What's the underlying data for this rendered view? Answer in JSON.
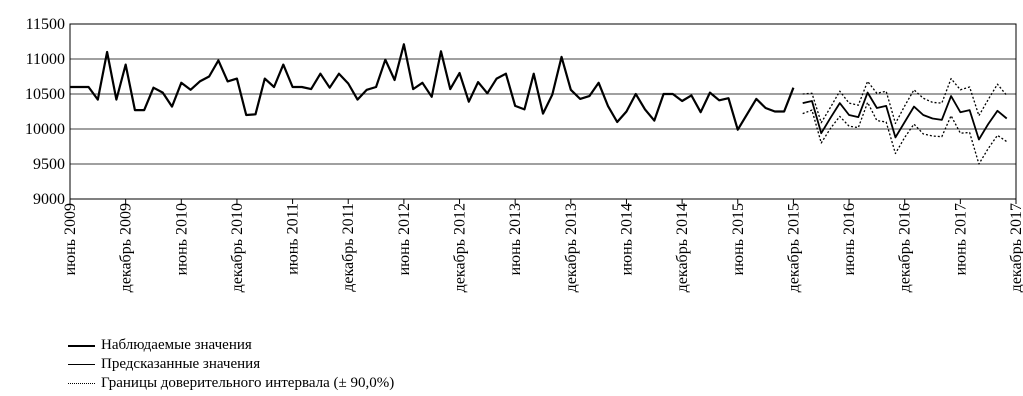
{
  "chart_data": {
    "type": "line",
    "title": "",
    "xlabel": "",
    "ylabel": "",
    "ylim": [
      9000,
      11500
    ],
    "yticks": [
      9000,
      9500,
      10000,
      10500,
      11000,
      11500
    ],
    "grid": "horizontal",
    "legend_position": "bottom-left",
    "x_start": "2009-06",
    "x_end": "2017-12",
    "xtick_labels": [
      "июнь 2009",
      "декабрь 2009",
      "июнь 2010",
      "декабрь 2010",
      "июнь 2011",
      "декабрь 2011",
      "июнь 2012",
      "декабрь 2012",
      "июнь 2013",
      "декабрь 2013",
      "июнь 2014",
      "декабрь 2014",
      "июнь 2015",
      "декабрь 2015",
      "июнь 2016",
      "декабрь 2016",
      "июнь 2017",
      "декабрь 2017"
    ],
    "series": [
      {
        "name": "Наблюдаемые значения",
        "style": "solid-thick",
        "color": "#000000",
        "start": "2009-06",
        "values": [
          10600,
          10600,
          10600,
          10420,
          11100,
          10420,
          10920,
          10270,
          10270,
          10590,
          10520,
          10320,
          10660,
          10560,
          10680,
          10750,
          10980,
          10680,
          10720,
          10200,
          10210,
          10720,
          10600,
          10920,
          10600,
          10600,
          10570,
          10790,
          10590,
          10790,
          10650,
          10420,
          10560,
          10600,
          10990,
          10700,
          11210,
          10570,
          10660,
          10460,
          11110,
          10570,
          10800,
          10390,
          10670,
          10510,
          10720,
          10790,
          10330,
          10280,
          10790,
          10220,
          10490,
          11030,
          10560,
          10430,
          10470,
          10660,
          10330,
          10100,
          10250,
          10500,
          10280,
          10120,
          10500,
          10500,
          10400,
          10480,
          10240,
          10520,
          10410,
          10440,
          9990,
          10210,
          10430,
          10300,
          10250,
          10250,
          10590
        ]
      },
      {
        "name": "Предсказанные значения",
        "style": "solid",
        "color": "#000000",
        "start": "2016-01",
        "values": [
          10370,
          10400,
          9940,
          10160,
          10370,
          10200,
          10170,
          10520,
          10300,
          10330,
          9880,
          10100,
          10320,
          10200,
          10150,
          10130,
          10470,
          10240,
          10270,
          9850,
          10070,
          10260,
          10150
        ]
      },
      {
        "name": "Границы доверительного интервала (± 90,0%)",
        "style": "dotted",
        "color": "#000000",
        "start": "2016-01",
        "values": [
          10500,
          10510,
          10090,
          10310,
          10540,
          10370,
          10340,
          10680,
          10510,
          10540,
          10080,
          10330,
          10560,
          10440,
          10380,
          10370,
          10720,
          10560,
          10600,
          10190,
          10420,
          10640,
          10480
        ]
      },
      {
        "name": "",
        "style": "dotted",
        "color": "#000000",
        "start": "2016-01",
        "values": [
          10220,
          10270,
          9800,
          10010,
          10180,
          10040,
          10020,
          10380,
          10120,
          10100,
          9650,
          9880,
          10070,
          9930,
          9900,
          9890,
          10190,
          9940,
          9950,
          9500,
          9720,
          9910,
          9820
        ]
      }
    ],
    "legend": [
      "Наблюдаемые значения",
      "Предсказанные значения",
      "Границы доверительного интервала (± 90,0%)"
    ]
  }
}
